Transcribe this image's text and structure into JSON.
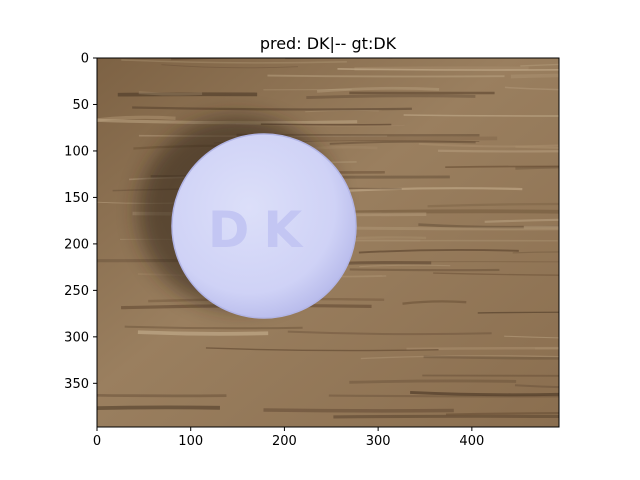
{
  "chart_data": {
    "type": "image",
    "title": "pred: DK|-- gt:DK",
    "xlabel": "",
    "ylabel": "",
    "xlim": [
      0,
      493
    ],
    "ylim": [
      397,
      0
    ],
    "xticks": [
      0,
      100,
      200,
      300,
      400
    ],
    "yticks": [
      0,
      50,
      100,
      150,
      200,
      250,
      300,
      350
    ],
    "grid": false,
    "image_content": {
      "subject": "round white pill on wood surface",
      "pill_imprint": "DK"
    }
  }
}
